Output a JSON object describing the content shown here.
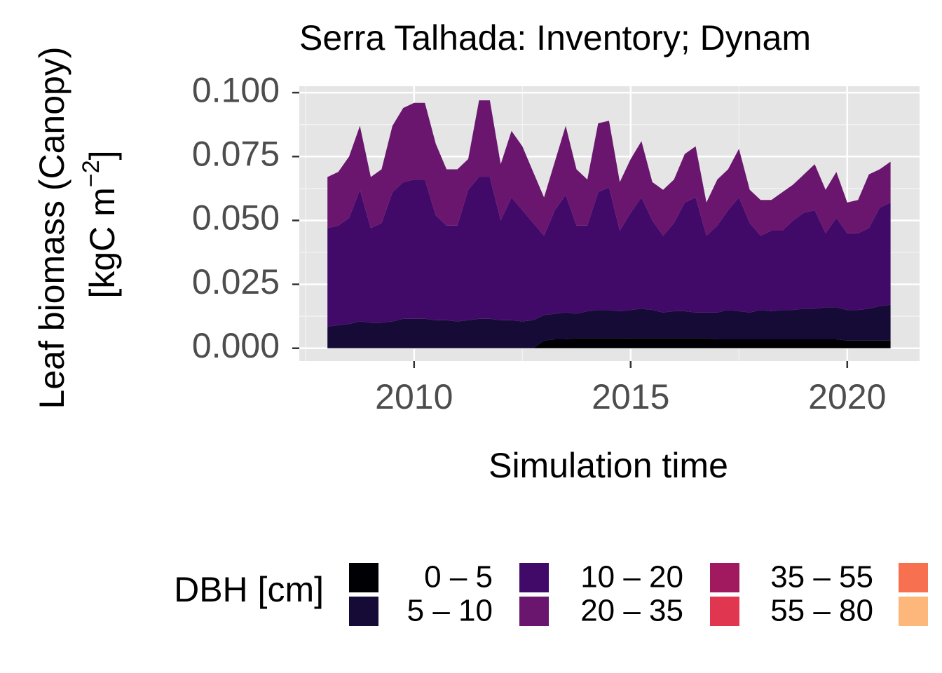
{
  "chart_data": {
    "type": "stacked_area",
    "title": "Serra Talhada: Inventory; Dynam",
    "ylabel": "Leaf biomass (Canopy)",
    "ylabel_unit": "[kgC m",
    "ylabel_exp": "−2",
    "ylabel_close": "]",
    "xlabel": "Simulation time",
    "legend_title": "DBH [cm]",
    "xlim": [
      2007.35,
      2021.67
    ],
    "xticks": [
      2010,
      2015,
      2020
    ],
    "ylim": [
      -0.005,
      0.1025
    ],
    "yticks": [
      {
        "value": 0,
        "label": "0.000"
      },
      {
        "value": 0.025,
        "label": "0.025"
      },
      {
        "value": 0.05,
        "label": "0.050"
      },
      {
        "value": 0.075,
        "label": "0.075"
      },
      {
        "value": 0.1,
        "label": "0.100"
      }
    ],
    "grid": true,
    "legend": "bottom",
    "x": [
      2008,
      2008.25,
      2008.5,
      2008.75,
      2009,
      2009.25,
      2009.5,
      2009.75,
      2010,
      2010.25,
      2010.5,
      2010.75,
      2011,
      2011.25,
      2011.5,
      2011.75,
      2012,
      2012.25,
      2012.5,
      2012.75,
      2013,
      2013.25,
      2013.5,
      2013.75,
      2014,
      2014.25,
      2014.5,
      2014.75,
      2015,
      2015.25,
      2015.5,
      2015.75,
      2016,
      2016.25,
      2016.5,
      2016.75,
      2017,
      2017.25,
      2017.5,
      2017.75,
      2018,
      2018.25,
      2018.5,
      2018.75,
      2019,
      2019.25,
      2019.5,
      2019.75,
      2020,
      2020.25,
      2020.5,
      2020.75,
      2021
    ],
    "series": [
      {
        "name": "0 – 5",
        "color": "#000004",
        "values": [
          0,
          0,
          0,
          0,
          0,
          0,
          0,
          0,
          0,
          0,
          0,
          0,
          0,
          0,
          0,
          0,
          0,
          0,
          0,
          0,
          0.003,
          0.0035,
          0.0035,
          0.004,
          0.004,
          0.004,
          0.004,
          0.004,
          0.004,
          0.004,
          0.004,
          0.004,
          0.004,
          0.004,
          0.004,
          0.004,
          0.0035,
          0.0035,
          0.0035,
          0.0035,
          0.0035,
          0.0035,
          0.0035,
          0.0035,
          0.0035,
          0.0035,
          0.0035,
          0.0035,
          0.003,
          0.003,
          0.003,
          0.003,
          0.003
        ]
      },
      {
        "name": "5 – 10",
        "color": "#160b37",
        "values": [
          0.0085,
          0.009,
          0.0095,
          0.0105,
          0.01,
          0.01,
          0.0105,
          0.0115,
          0.0115,
          0.0115,
          0.011,
          0.011,
          0.0105,
          0.011,
          0.0115,
          0.0115,
          0.011,
          0.011,
          0.0105,
          0.011,
          0.01,
          0.01,
          0.0105,
          0.0095,
          0.0105,
          0.011,
          0.011,
          0.0105,
          0.011,
          0.0115,
          0.011,
          0.01,
          0.0105,
          0.0105,
          0.01,
          0.01,
          0.0105,
          0.0115,
          0.011,
          0.0105,
          0.0115,
          0.011,
          0.0115,
          0.0115,
          0.012,
          0.012,
          0.0125,
          0.0125,
          0.012,
          0.012,
          0.0125,
          0.0135,
          0.014
        ]
      },
      {
        "name": "10 – 20",
        "color": "#420a68",
        "values": [
          0.0385,
          0.039,
          0.0415,
          0.0515,
          0.037,
          0.039,
          0.0505,
          0.0535,
          0.0545,
          0.0545,
          0.041,
          0.037,
          0.0375,
          0.051,
          0.0555,
          0.0555,
          0.039,
          0.048,
          0.0435,
          0.038,
          0.031,
          0.0405,
          0.046,
          0.0345,
          0.0335,
          0.046,
          0.048,
          0.0315,
          0.038,
          0.0435,
          0.035,
          0.03,
          0.0345,
          0.0425,
          0.045,
          0.03,
          0.034,
          0.039,
          0.0445,
          0.035,
          0.029,
          0.0315,
          0.031,
          0.035,
          0.0375,
          0.0385,
          0.029,
          0.035,
          0.03,
          0.03,
          0.0315,
          0.0385,
          0.04
        ]
      },
      {
        "name": "20 – 35",
        "color": "#6a166e",
        "values": [
          0.02,
          0.021,
          0.024,
          0.025,
          0.02,
          0.021,
          0.026,
          0.029,
          0.03,
          0.03,
          0.028,
          0.022,
          0.022,
          0.012,
          0.03,
          0.03,
          0.022,
          0.026,
          0.025,
          0.02,
          0.015,
          0.019,
          0.027,
          0.022,
          0.018,
          0.027,
          0.026,
          0.019,
          0.021,
          0.022,
          0.015,
          0.018,
          0.017,
          0.019,
          0.02,
          0.013,
          0.018,
          0.016,
          0.019,
          0.013,
          0.014,
          0.012,
          0.015,
          0.014,
          0.015,
          0.018,
          0.017,
          0.018,
          0.012,
          0.013,
          0.021,
          0.015,
          0.016
        ]
      },
      {
        "name": "35 – 55",
        "color": "#a1195f",
        "values": [
          0,
          0,
          0,
          0,
          0,
          0,
          0,
          0,
          0,
          0,
          0,
          0,
          0,
          0,
          0,
          0,
          0,
          0,
          0,
          0,
          0,
          0,
          0,
          0,
          0,
          0,
          0,
          0,
          0,
          0,
          0,
          0,
          0,
          0,
          0,
          0,
          0,
          0,
          0,
          0,
          0,
          0,
          0,
          0,
          0,
          0,
          0,
          0,
          0,
          0,
          0,
          0,
          0
        ]
      },
      {
        "name": "55 – 80",
        "color": "#e0364f",
        "values": [
          0,
          0,
          0,
          0,
          0,
          0,
          0,
          0,
          0,
          0,
          0,
          0,
          0,
          0,
          0,
          0,
          0,
          0,
          0,
          0,
          0,
          0,
          0,
          0,
          0,
          0,
          0,
          0,
          0,
          0,
          0,
          0,
          0,
          0,
          0,
          0,
          0,
          0,
          0,
          0,
          0,
          0,
          0,
          0,
          0,
          0,
          0,
          0,
          0,
          0,
          0,
          0,
          0
        ]
      }
    ]
  }
}
